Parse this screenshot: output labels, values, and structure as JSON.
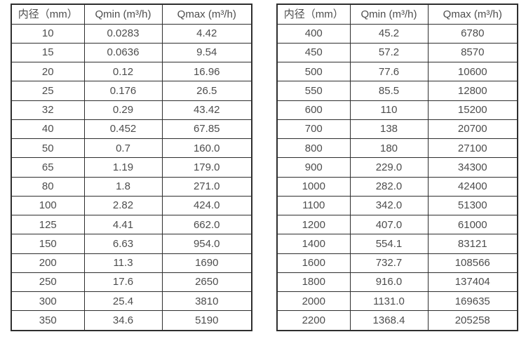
{
  "page": {
    "background": "#ffffff",
    "border_color": "#2e2e2e",
    "text_color": "#4d4d4d"
  },
  "tables": [
    {
      "headers": [
        "内径（mm）",
        "Qmin (m³/h)",
        "Qmax (m³/h)"
      ],
      "rows": [
        [
          "10",
          "0.0283",
          "4.42"
        ],
        [
          "15",
          "0.0636",
          "9.54"
        ],
        [
          "20",
          "0.12",
          "16.96"
        ],
        [
          "25",
          "0.176",
          "26.5"
        ],
        [
          "32",
          "0.29",
          "43.42"
        ],
        [
          "40",
          "0.452",
          "67.85"
        ],
        [
          "50",
          "0.7",
          "160.0"
        ],
        [
          "65",
          "1.19",
          "179.0"
        ],
        [
          "80",
          "1.8",
          "271.0"
        ],
        [
          "100",
          "2.82",
          "424.0"
        ],
        [
          "125",
          "4.41",
          "662.0"
        ],
        [
          "150",
          "6.63",
          "954.0"
        ],
        [
          "200",
          "11.3",
          "1690"
        ],
        [
          "250",
          "17.6",
          "2650"
        ],
        [
          "300",
          "25.4",
          "3810"
        ],
        [
          "350",
          "34.6",
          "5190"
        ]
      ]
    },
    {
      "headers": [
        "内径（mm）",
        "Qmin (m³/h)",
        "Qmax (m³/h)"
      ],
      "rows": [
        [
          "400",
          "45.2",
          "6780"
        ],
        [
          "450",
          "57.2",
          "8570"
        ],
        [
          "500",
          "77.6",
          "10600"
        ],
        [
          "550",
          "85.5",
          "12800"
        ],
        [
          "600",
          "110",
          "15200"
        ],
        [
          "700",
          "138",
          "20700"
        ],
        [
          "800",
          "180",
          "27100"
        ],
        [
          "900",
          "229.0",
          "34300"
        ],
        [
          "1000",
          "282.0",
          "42400"
        ],
        [
          "1100",
          "342.0",
          "51300"
        ],
        [
          "1200",
          "407.0",
          "61000"
        ],
        [
          "1400",
          "554.1",
          "83121"
        ],
        [
          "1600",
          "732.7",
          "108566"
        ],
        [
          "1800",
          "916.0",
          "137404"
        ],
        [
          "2000",
          "1131.0",
          "169635"
        ],
        [
          "2200",
          "1368.4",
          "205258"
        ]
      ]
    }
  ]
}
